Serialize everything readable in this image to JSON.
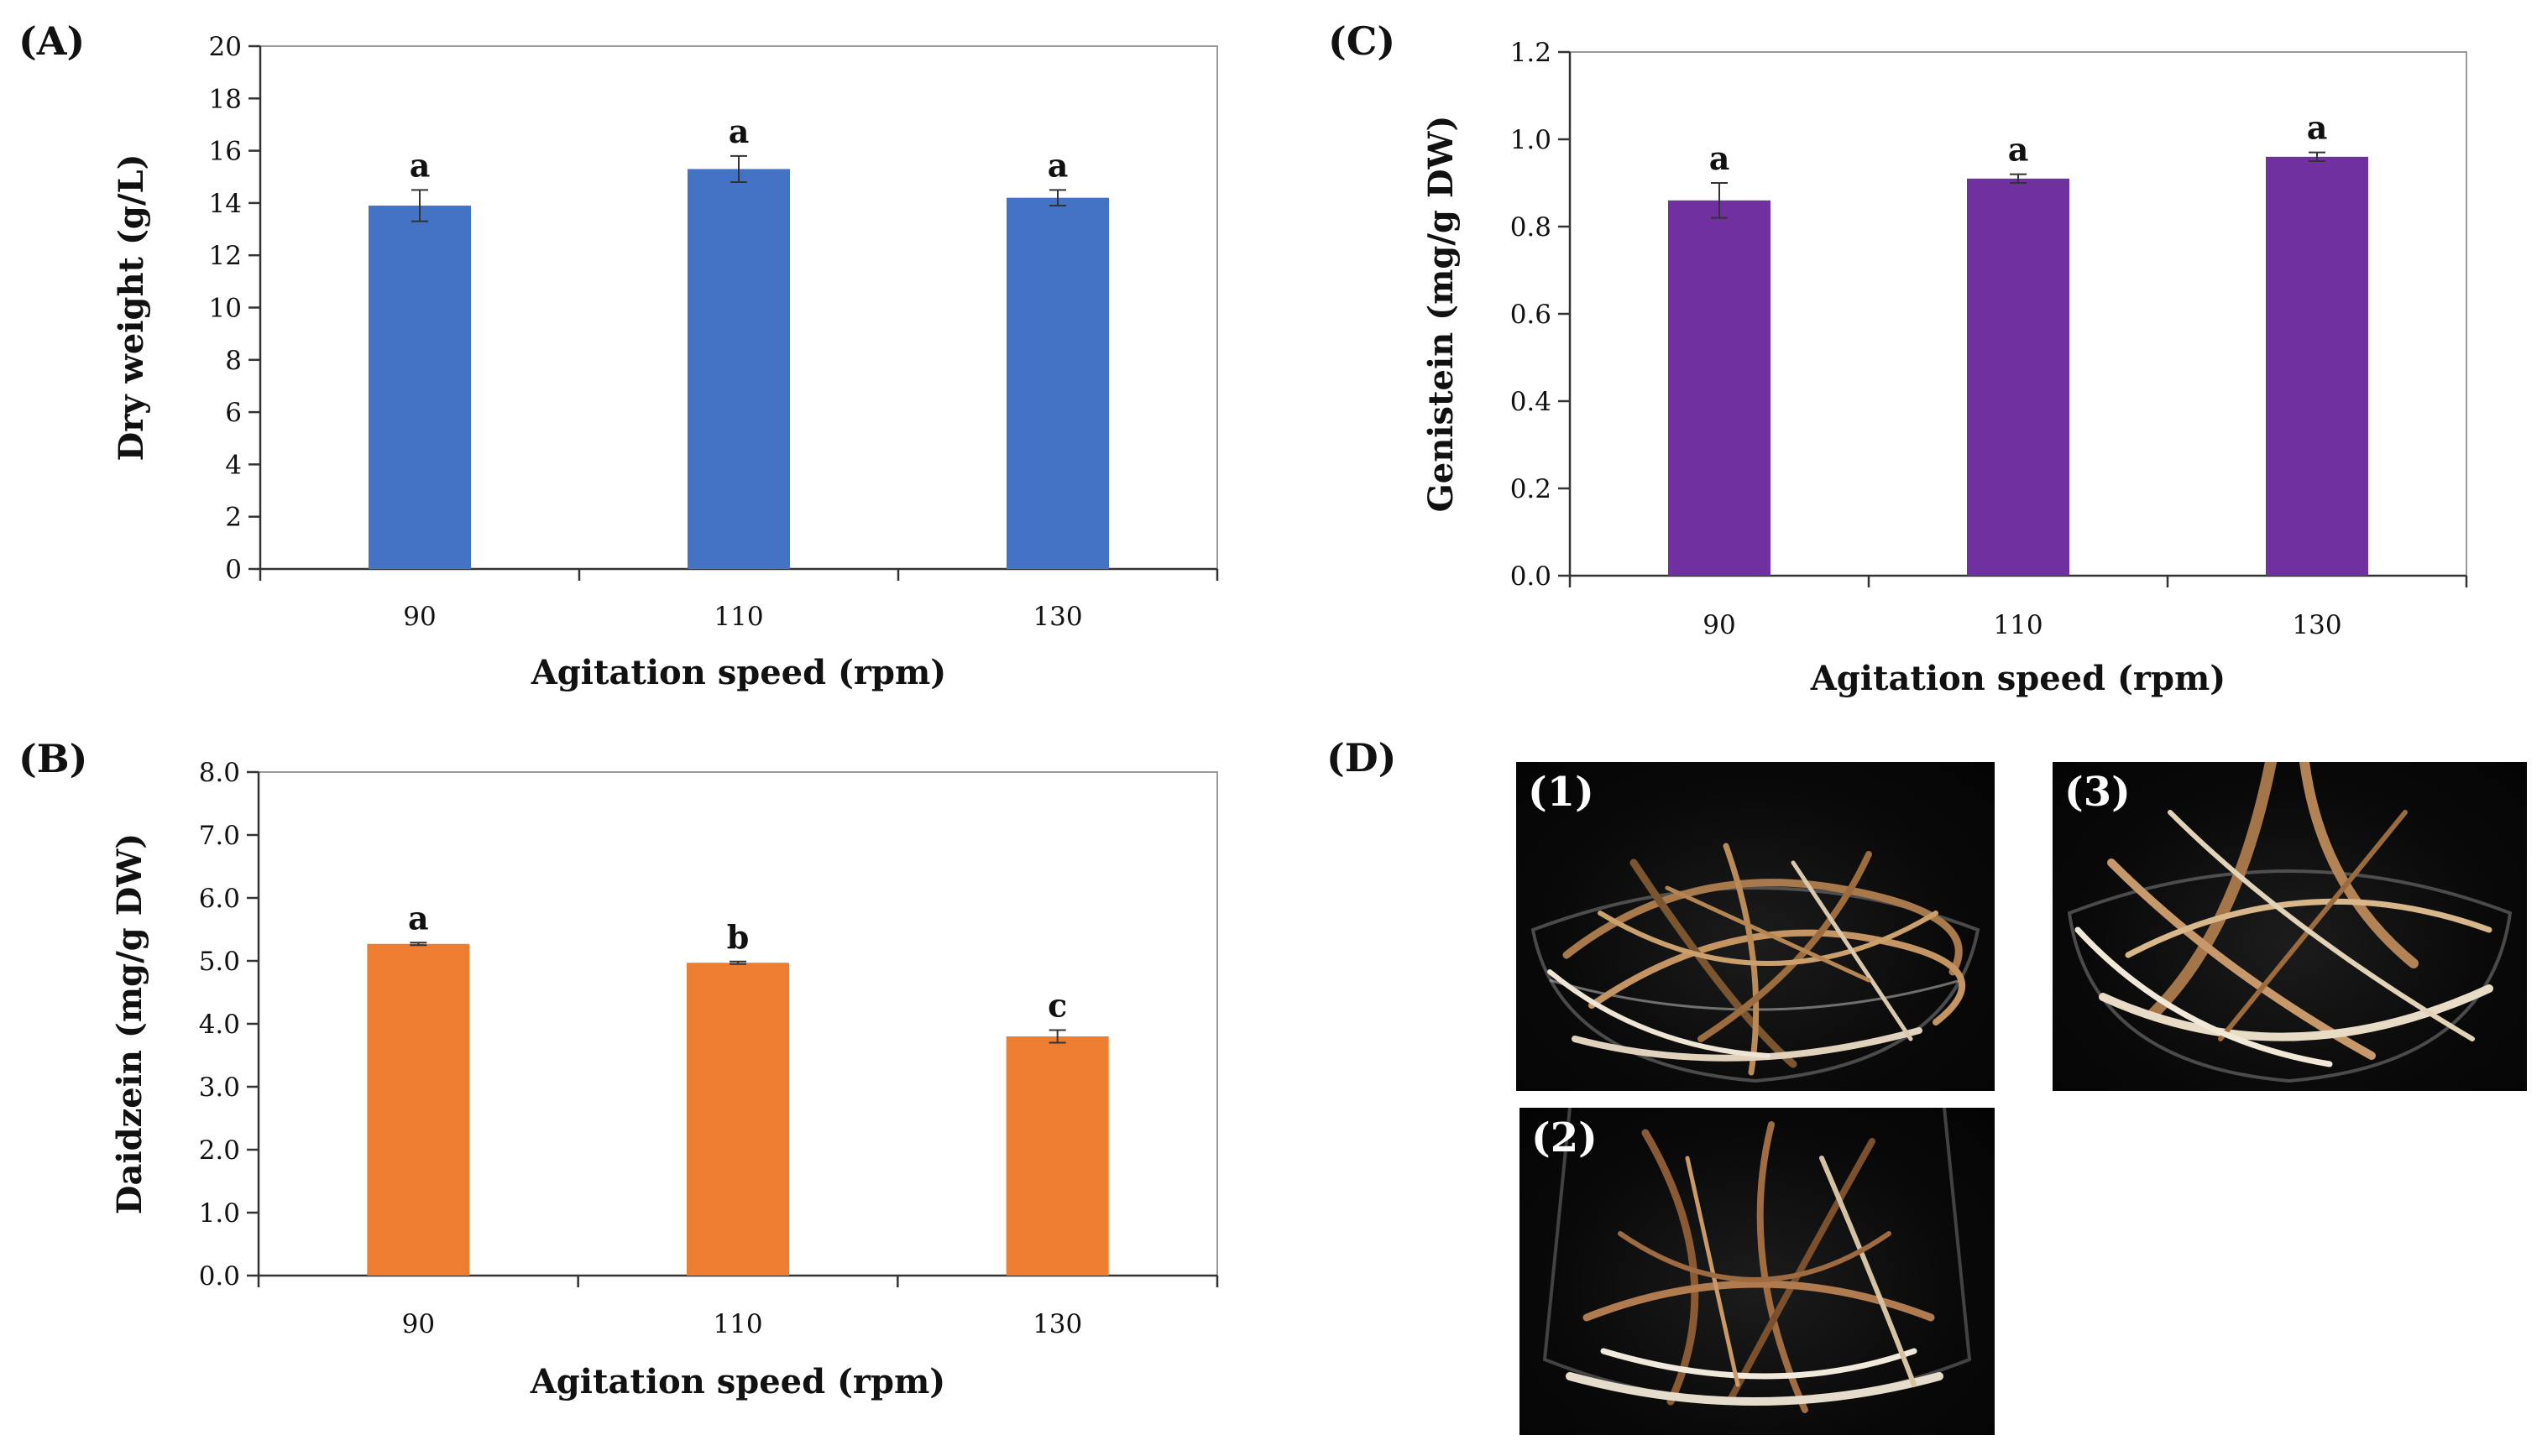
{
  "chart_data": [
    {
      "id": "A",
      "panel_label": "(A)",
      "type": "bar",
      "categories": [
        "90",
        "110",
        "130"
      ],
      "values": [
        13.9,
        15.3,
        14.2
      ],
      "errors": [
        0.6,
        0.5,
        0.3
      ],
      "significance": [
        "a",
        "a",
        "a"
      ],
      "color": "#4472C4",
      "xlabel": "Agitation speed (rpm)",
      "ylabel": "Dry weight (g/L)",
      "ylim": [
        0,
        20
      ],
      "ystep": 2,
      "ytick_decimals": 0,
      "grid": false
    },
    {
      "id": "B",
      "panel_label": "(B)",
      "type": "bar",
      "categories": [
        "90",
        "110",
        "130"
      ],
      "values": [
        5.27,
        4.97,
        3.8
      ],
      "errors": [
        0.02,
        0.02,
        0.1
      ],
      "significance": [
        "a",
        "b",
        "c"
      ],
      "color": "#ED7D31",
      "xlabel": "Agitation speed (rpm)",
      "ylabel": "Daidzein (mg/g DW)",
      "ylim": [
        0,
        8
      ],
      "ystep": 1,
      "ytick_decimals": 1,
      "grid": false
    },
    {
      "id": "C",
      "panel_label": "(C)",
      "type": "bar",
      "categories": [
        "90",
        "110",
        "130"
      ],
      "values": [
        0.86,
        0.91,
        0.96
      ],
      "errors": [
        0.04,
        0.01,
        0.01
      ],
      "significance": [
        "a",
        "a",
        "a"
      ],
      "color": "#7030A0",
      "xlabel": "Agitation speed (rpm)",
      "ylabel": "Genistein (mg/g DW)",
      "ylim": [
        0,
        1.2
      ],
      "ystep": 0.2,
      "ytick_decimals": 1,
      "grid": false
    }
  ],
  "photos": {
    "panel_label": "(D)",
    "items": [
      {
        "tag": "(1)"
      },
      {
        "tag": "(2)"
      },
      {
        "tag": "(3)"
      }
    ]
  }
}
